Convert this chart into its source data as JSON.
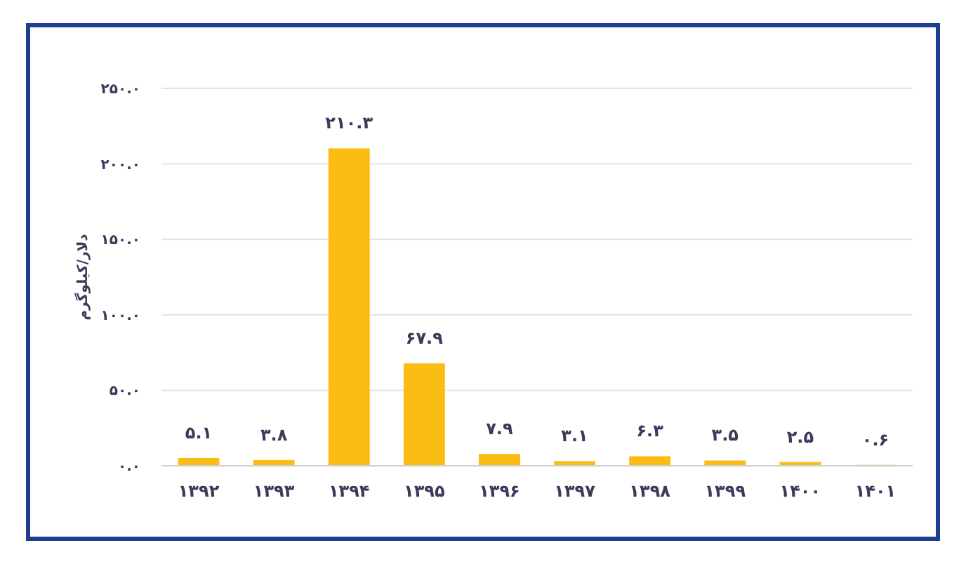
{
  "chart_data": {
    "type": "bar",
    "ylabel": "دلار/کیلوگرم",
    "categories": [
      "۱۳۹۲",
      "۱۳۹۳",
      "۱۳۹۴",
      "۱۳۹۵",
      "۱۳۹۶",
      "۱۳۹۷",
      "۱۳۹۸",
      "۱۳۹۹",
      "۱۴۰۰",
      "۱۴۰۱"
    ],
    "values": [
      5.1,
      3.8,
      210.3,
      67.9,
      7.9,
      3.1,
      6.3,
      3.5,
      2.5,
      0.6
    ],
    "value_labels": [
      "۵.۱",
      "۳.۸",
      "۲۱۰.۳",
      "۶۷.۹",
      "۷.۹",
      "۳.۱",
      "۶.۳",
      "۳.۵",
      "۲.۵",
      "۰.۶"
    ],
    "color": "#fbbc14",
    "ylim": [
      0,
      250
    ],
    "yticks": [
      {
        "value": 0,
        "label": "۰.۰"
      },
      {
        "value": 50,
        "label": "۵۰.۰"
      },
      {
        "value": 100,
        "label": "۱۰۰.۰"
      },
      {
        "value": 150,
        "label": "۱۵۰.۰"
      },
      {
        "value": 200,
        "label": "۲۰۰.۰"
      },
      {
        "value": 250,
        "label": "۲۵۰.۰"
      }
    ],
    "grid": "y"
  }
}
